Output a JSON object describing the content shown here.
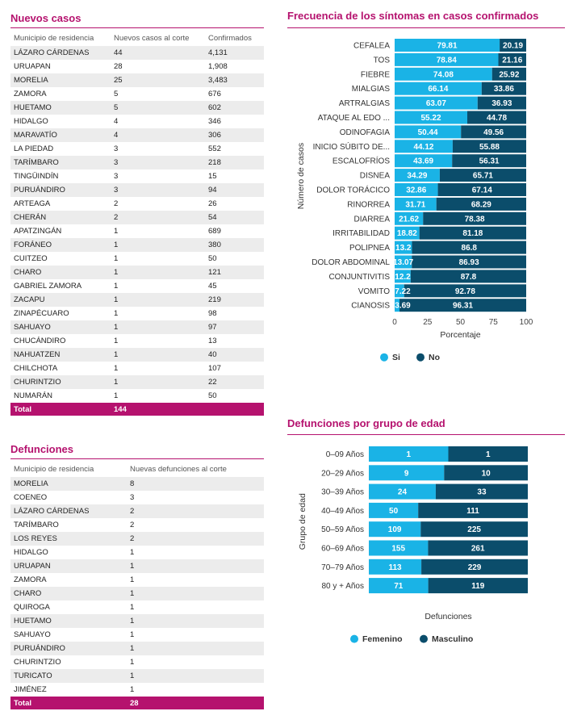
{
  "nuevos_casos": {
    "title": "Nuevos casos",
    "headers": [
      "Municipio de residencia",
      "Nuevos casos al corte",
      "Confirmados"
    ],
    "rows": [
      [
        "LÁZARO CÁRDENAS",
        "44",
        "4,131"
      ],
      [
        "URUAPAN",
        "28",
        "1,908"
      ],
      [
        "MORELIA",
        "25",
        "3,483"
      ],
      [
        "ZAMORA",
        "5",
        "676"
      ],
      [
        "HUETAMO",
        "5",
        "602"
      ],
      [
        "HIDALGO",
        "4",
        "346"
      ],
      [
        "MARAVATÍO",
        "4",
        "306"
      ],
      [
        "LA PIEDAD",
        "3",
        "552"
      ],
      [
        "TARÍMBARO",
        "3",
        "218"
      ],
      [
        "TINGÜINDÍN",
        "3",
        "15"
      ],
      [
        "PURUÁNDIRO",
        "3",
        "94"
      ],
      [
        "ARTEAGA",
        "2",
        "26"
      ],
      [
        "CHERÁN",
        "2",
        "54"
      ],
      [
        "APATZINGÁN",
        "1",
        "689"
      ],
      [
        "FORÁNEO",
        "1",
        "380"
      ],
      [
        "CUITZEO",
        "1",
        "50"
      ],
      [
        "CHARO",
        "1",
        "121"
      ],
      [
        "GABRIEL ZAMORA",
        "1",
        "45"
      ],
      [
        "ZACAPU",
        "1",
        "219"
      ],
      [
        "ZINAPÉCUARO",
        "1",
        "98"
      ],
      [
        "SAHUAYO",
        "1",
        "97"
      ],
      [
        "CHUCÁNDIRO",
        "1",
        "13"
      ],
      [
        "NAHUATZEN",
        "1",
        "40"
      ],
      [
        "CHILCHOTA",
        "1",
        "107"
      ],
      [
        "CHURINTZIO",
        "1",
        "22"
      ],
      [
        "NUMARÁN",
        "1",
        "50"
      ]
    ],
    "total_label": "Total",
    "total_value": "144"
  },
  "defunciones": {
    "title": "Defunciones",
    "headers": [
      "Municipio de residencia",
      "Nuevas defunciones al corte"
    ],
    "rows": [
      [
        "MORELIA",
        "8"
      ],
      [
        "COENEO",
        "3"
      ],
      [
        "LÁZARO CÁRDENAS",
        "2"
      ],
      [
        "TARÍMBARO",
        "2"
      ],
      [
        "LOS REYES",
        "2"
      ],
      [
        "HIDALGO",
        "1"
      ],
      [
        "URUAPAN",
        "1"
      ],
      [
        "ZAMORA",
        "1"
      ],
      [
        "CHARO",
        "1"
      ],
      [
        "QUIROGA",
        "1"
      ],
      [
        "HUETAMO",
        "1"
      ],
      [
        "SAHUAYO",
        "1"
      ],
      [
        "PURUÁNDIRO",
        "1"
      ],
      [
        "CHURINTZIO",
        "1"
      ],
      [
        "TURICATO",
        "1"
      ],
      [
        "JIMÉNEZ",
        "1"
      ]
    ],
    "total_label": "Total",
    "total_value": "28"
  },
  "colors": {
    "accent": "#b5126e",
    "light_blue": "#1ab3e6",
    "dark_blue": "#0b4d6b"
  },
  "chart_data": [
    {
      "type": "bar",
      "orientation": "horizontal",
      "stacked": true,
      "title": "Frecuencia de los síntomas en casos confirmados",
      "xlabel": "Porcentaje",
      "ylabel": "Número de casos",
      "xlim": [
        0,
        100
      ],
      "xticks": [
        0,
        25,
        50,
        75,
        100
      ],
      "legend_position": "bottom",
      "categories": [
        "CEFALEA",
        "TOS",
        "FIEBRE",
        "MIALGIAS",
        "ARTRALGIAS",
        "ATAQUE AL EDO ...",
        "ODINOFAGIA",
        "INICIO SÚBITO DE...",
        "ESCALOFRÍOS",
        "DISNEA",
        "DOLOR TORÁCICO",
        "RINORREA",
        "DIARREA",
        "IRRITABILIDAD",
        "POLIPNEA",
        "DOLOR ABDOMINAL",
        "CONJUNTIVITIS",
        "VOMITO",
        "CIANOSIS"
      ],
      "series": [
        {
          "name": "Si",
          "values": [
            79.81,
            78.84,
            74.08,
            66.14,
            63.07,
            55.22,
            50.44,
            44.12,
            43.69,
            34.29,
            32.86,
            31.71,
            21.62,
            18.82,
            13.2,
            13.07,
            12.2,
            7.22,
            3.69
          ]
        },
        {
          "name": "No",
          "values": [
            20.19,
            21.16,
            25.92,
            33.86,
            36.93,
            44.78,
            49.56,
            55.88,
            56.31,
            65.71,
            67.14,
            68.29,
            78.38,
            81.18,
            86.8,
            86.93,
            87.8,
            92.78,
            96.31
          ]
        }
      ]
    },
    {
      "type": "bar",
      "orientation": "horizontal",
      "stacked": true,
      "title": "Defunciones por grupo de edad",
      "xlabel": "Defunciones",
      "ylabel": "Grupo de edad",
      "legend_position": "bottom",
      "categories": [
        "0–09 Años",
        "20–29 Años",
        "30–39 Años",
        "40–49 Años",
        "50–59 Años",
        "60–69 Años",
        "70–79 Años",
        "80 y + Años"
      ],
      "series": [
        {
          "name": "Femenino",
          "values": [
            1,
            9,
            24,
            50,
            109,
            155,
            113,
            71
          ]
        },
        {
          "name": "Masculino",
          "values": [
            1,
            10,
            33,
            111,
            225,
            261,
            229,
            119
          ]
        }
      ]
    }
  ]
}
